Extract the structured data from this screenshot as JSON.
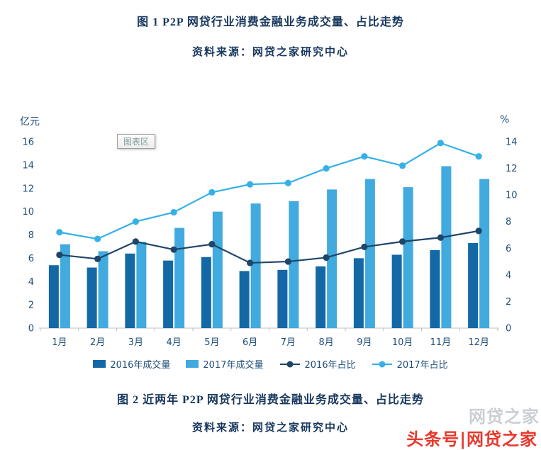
{
  "figure1": {
    "title": "图 1  P2P 网贷行业消费金融业务成交量、占比走势",
    "source": "资料来源：网贷之家研究中心"
  },
  "figure2": {
    "title": "图 2  近两年 P2P 网贷行业消费金融业务成交量、占比走势",
    "source": "资料来源：网贷之家研究中心"
  },
  "watermark": {
    "gray_text": "网贷之家",
    "red_text": "头条号|网贷之家",
    "red_color": "#e8392d"
  },
  "chart_data": {
    "type": "bar-line-combo",
    "chart_area_label": "图表区",
    "grid": false,
    "legend_position": "bottom",
    "categories": [
      "1月",
      "2月",
      "3月",
      "4月",
      "5月",
      "6月",
      "7月",
      "8月",
      "9月",
      "10月",
      "11月",
      "12月"
    ],
    "left_axis": {
      "label": "亿元",
      "min": 0,
      "max": 16,
      "step": 2
    },
    "right_axis": {
      "label": "%",
      "min": 0,
      "max": 14,
      "step": 2
    },
    "series": [
      {
        "name": "2016年成交量",
        "type": "bar",
        "axis": "left",
        "color": "#1468A5",
        "values": [
          5.4,
          5.2,
          6.4,
          5.8,
          6.1,
          4.9,
          5.0,
          5.3,
          6.0,
          6.3,
          6.7,
          7.3
        ]
      },
      {
        "name": "2017年成交量",
        "type": "bar",
        "axis": "left",
        "color": "#41AADF",
        "values": [
          7.2,
          6.6,
          7.4,
          8.6,
          10.0,
          10.7,
          10.9,
          11.9,
          12.8,
          12.1,
          13.9,
          12.8
        ]
      },
      {
        "name": "2016年占比",
        "type": "line",
        "axis": "right",
        "color": "#1F4568",
        "values": [
          5.5,
          5.2,
          6.5,
          5.9,
          6.3,
          4.9,
          5.0,
          5.3,
          6.1,
          6.5,
          6.8,
          7.3
        ]
      },
      {
        "name": "2017年占比",
        "type": "line",
        "axis": "right",
        "color": "#35B1E8",
        "values": [
          7.2,
          6.7,
          8.0,
          8.7,
          10.2,
          10.8,
          10.9,
          12.0,
          12.9,
          12.2,
          13.9,
          12.9
        ]
      }
    ]
  }
}
